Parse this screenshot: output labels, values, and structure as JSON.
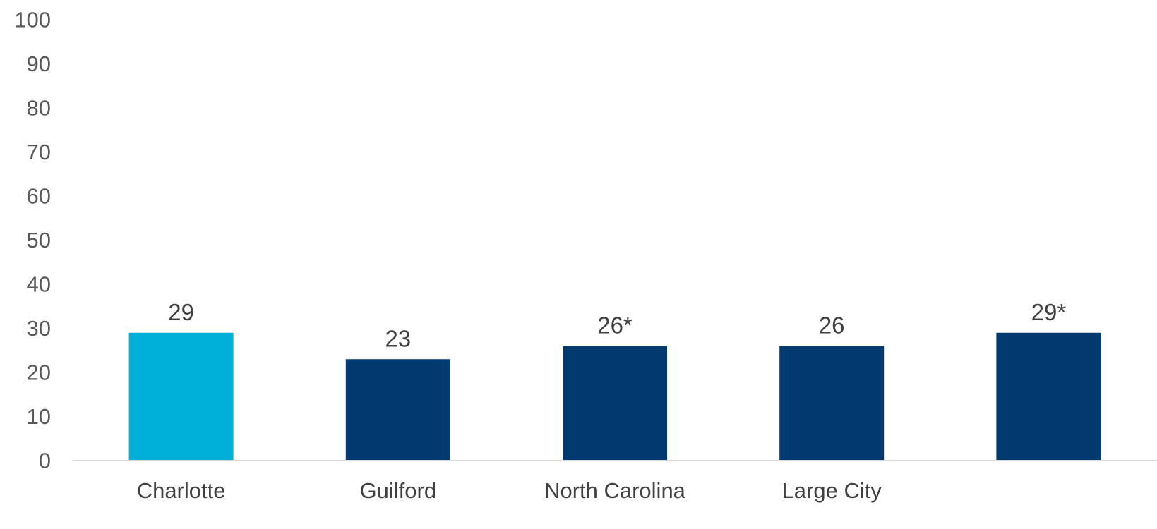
{
  "chart_data": {
    "type": "bar",
    "categories": [
      "Charlotte",
      "Guilford",
      "North Carolina",
      "Large City",
      ""
    ],
    "values": [
      29,
      23,
      26,
      26,
      29
    ],
    "data_labels": [
      "29",
      "23",
      "26*",
      "26",
      "29*"
    ],
    "colors": [
      "#00b0d8",
      "#003a6e",
      "#003a6e",
      "#003a6e",
      "#003a6e"
    ],
    "ylim": [
      0,
      100
    ],
    "yticks": [
      0,
      10,
      20,
      30,
      40,
      50,
      60,
      70,
      80,
      90,
      100
    ],
    "grid": false,
    "axis_color": "#d9d9d9"
  }
}
